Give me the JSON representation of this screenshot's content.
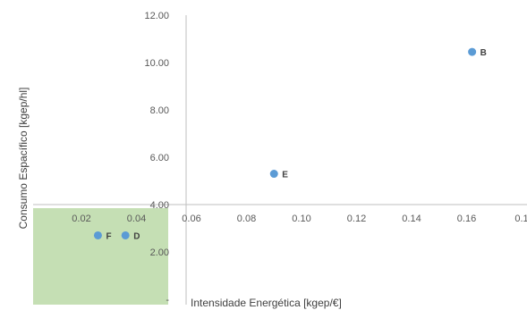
{
  "chart_data": {
    "type": "scatter",
    "title": "",
    "xlabel": "Intensidade Energética [kgep/€]",
    "ylabel": "Consumo Espacífico [kgep/hl]",
    "x_ticks": [
      "0.02",
      "0.04",
      "0.06",
      "0.08",
      "0.10",
      "0.12",
      "0.14",
      "0.16",
      "0.1"
    ],
    "y_ticks": [
      "-",
      "2.00",
      "4.00",
      "6.00",
      "8.00",
      "10.00",
      "12.00"
    ],
    "xlim": [
      0.0,
      0.18
    ],
    "ylim": [
      0,
      12
    ],
    "x_axis_crosses_y_at": 4.0,
    "y_axis_crosses_x_at": 0.06,
    "grid": false,
    "legend": "none",
    "highlight_region": {
      "x": [
        0,
        0.06
      ],
      "y": [
        0,
        4.0
      ],
      "color": "#c5dfb4"
    },
    "points": [
      {
        "label": "B",
        "x": 0.162,
        "y": 10.45,
        "color": "#5b9bd5"
      },
      {
        "label": "E",
        "x": 0.09,
        "y": 5.3,
        "color": "#5b9bd5"
      },
      {
        "label": "D",
        "x": 0.036,
        "y": 2.7,
        "color": "#5b9bd5"
      },
      {
        "label": "F",
        "x": 0.026,
        "y": 2.7,
        "color": "#5b9bd5"
      }
    ]
  }
}
